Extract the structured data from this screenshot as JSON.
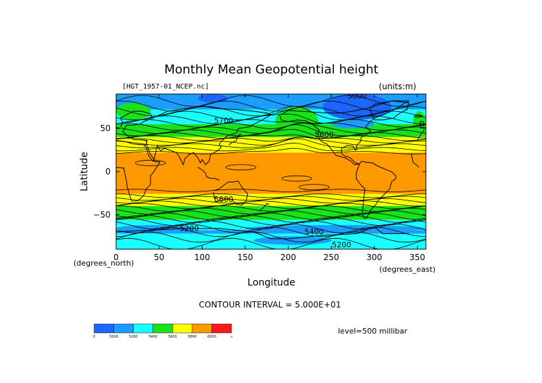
{
  "chart_data": {
    "type": "heatmap",
    "title": "Monthly Mean Geopotential height",
    "file_label": "[HGT_1957-01_NCEP.nc]",
    "units_label": "(units:m)",
    "xlabel": "Longitude",
    "ylabel": "Latitude",
    "x_unit_label": "(degrees_east)",
    "y_unit_label": "(degrees_north)",
    "xlim": [
      0,
      360
    ],
    "ylim": [
      -90,
      90
    ],
    "x_ticks": [
      0,
      50,
      100,
      150,
      200,
      250,
      300,
      350
    ],
    "y_ticks": [
      -50,
      0,
      50
    ],
    "contour_interval_label": "CONTOUR INTERVAL = 5.000E+01",
    "level_label": "level=500 millibar",
    "contour_labels": [
      {
        "text": "5000",
        "lon": 280,
        "lat": 85
      },
      {
        "text": "5700",
        "lon": 125,
        "lat": 56
      },
      {
        "text": "5600",
        "lon": 242,
        "lat": 40
      },
      {
        "text": "5600",
        "lon": 125,
        "lat": -35
      },
      {
        "text": "5200",
        "lon": 85,
        "lat": -69
      },
      {
        "text": "5400",
        "lon": 230,
        "lat": -73
      },
      {
        "text": "5200",
        "lon": 262,
        "lat": -88
      }
    ],
    "colorbar": {
      "ticks": [
        "0",
        "5000",
        "5200",
        "5400",
        "5600",
        "5800",
        "6000",
        "∞"
      ],
      "colors": [
        "#1a66ff",
        "#1a9dff",
        "#19ffff",
        "#19e21a",
        "#ffff00",
        "#ff9900",
        "#ff1a1a"
      ]
    },
    "zonal_bands": [
      {
        "lat_from": 90,
        "lat_to": 72,
        "color": "#1a9dff"
      },
      {
        "lat_from": 72,
        "lat_to": 55,
        "color": "#19ffff"
      },
      {
        "lat_from": 55,
        "lat_to": 40,
        "color": "#19e21a"
      },
      {
        "lat_from": 40,
        "lat_to": 22,
        "color": "#ffff00"
      },
      {
        "lat_from": 22,
        "lat_to": -26,
        "color": "#ff9900"
      },
      {
        "lat_from": -26,
        "lat_to": -40,
        "color": "#ffff00"
      },
      {
        "lat_from": -40,
        "lat_to": -56,
        "color": "#19e21a"
      },
      {
        "lat_from": -56,
        "lat_to": -68,
        "color": "#19ffff"
      },
      {
        "lat_from": -68,
        "lat_to": -72,
        "color": "#1a9dff"
      },
      {
        "lat_from": -72,
        "lat_to": -90,
        "color": "#19ffff"
      }
    ],
    "cells": [
      {
        "lon_from": 0,
        "lon_to": 40,
        "lat_from": 80,
        "lat_to": 60,
        "color": "#19e21a"
      },
      {
        "lon_from": 95,
        "lon_to": 130,
        "lat_from": 90,
        "lat_to": 80,
        "color": "#1a66ff"
      },
      {
        "lon_from": 185,
        "lon_to": 235,
        "lat_from": 75,
        "lat_to": 40,
        "color": "#19e21a"
      },
      {
        "lon_from": 240,
        "lon_to": 320,
        "lat_from": 90,
        "lat_to": 60,
        "color": "#1a66ff"
      },
      {
        "lon_from": 250,
        "lon_to": 300,
        "lat_from": 60,
        "lat_to": 50,
        "color": "#1a9dff"
      },
      {
        "lon_from": 345,
        "lon_to": 360,
        "lat_from": 70,
        "lat_to": 45,
        "color": "#19e21a"
      },
      {
        "lon_from": 100,
        "lon_to": 230,
        "lat_from": -30,
        "lat_to": -38,
        "color": "#ffff00"
      },
      {
        "lon_from": 0,
        "lon_to": 90,
        "lat_from": -62,
        "lat_to": -70,
        "color": "#1a9dff"
      },
      {
        "lon_from": 150,
        "lon_to": 360,
        "lat_from": -62,
        "lat_to": -70,
        "color": "#1a9dff"
      },
      {
        "lon_from": 160,
        "lon_to": 250,
        "lat_from": -75,
        "lat_to": -85,
        "color": "#1a9dff"
      }
    ]
  }
}
